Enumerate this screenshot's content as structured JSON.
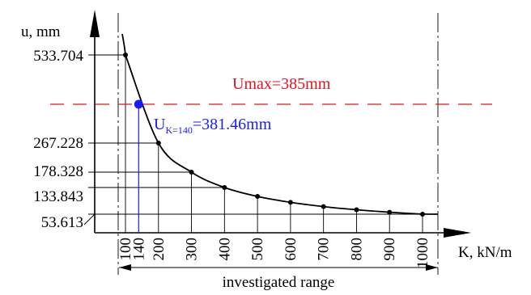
{
  "chart_data": {
    "type": "line",
    "x_axis_label": "K, kN/m",
    "y_axis_label": "u, mm",
    "x_ticks": [
      100,
      140,
      200,
      300,
      400,
      500,
      600,
      700,
      800,
      900,
      1000
    ],
    "x_tick_labels": [
      "100",
      "140",
      "200",
      "300",
      "400",
      "500",
      "600",
      "700",
      "800",
      "900",
      "1000"
    ],
    "y_tick_labels": [
      "533.704",
      "267.228",
      "178.328",
      "133.843",
      "53.613"
    ],
    "series": [
      {
        "x": [
          100,
          200,
          300,
          400,
          500,
          600,
          700,
          800,
          900,
          1000
        ],
        "y": [
          533.704,
          267.228,
          178.328,
          133.843,
          107.0,
          89.2,
          76.5,
          66.9,
          59.5,
          53.613
        ],
        "color": "#000000"
      }
    ],
    "highlight_point": {
      "x": 140,
      "y": 381.46,
      "label_main": "U",
      "label_sub": "K=140",
      "label_rest": "=381.46mm",
      "color": "#1a1aff"
    },
    "limit_line": {
      "y": 385,
      "label": "Umax=385mm",
      "color": "#e0141e"
    },
    "range_label": "investigated range",
    "grid": false
  }
}
